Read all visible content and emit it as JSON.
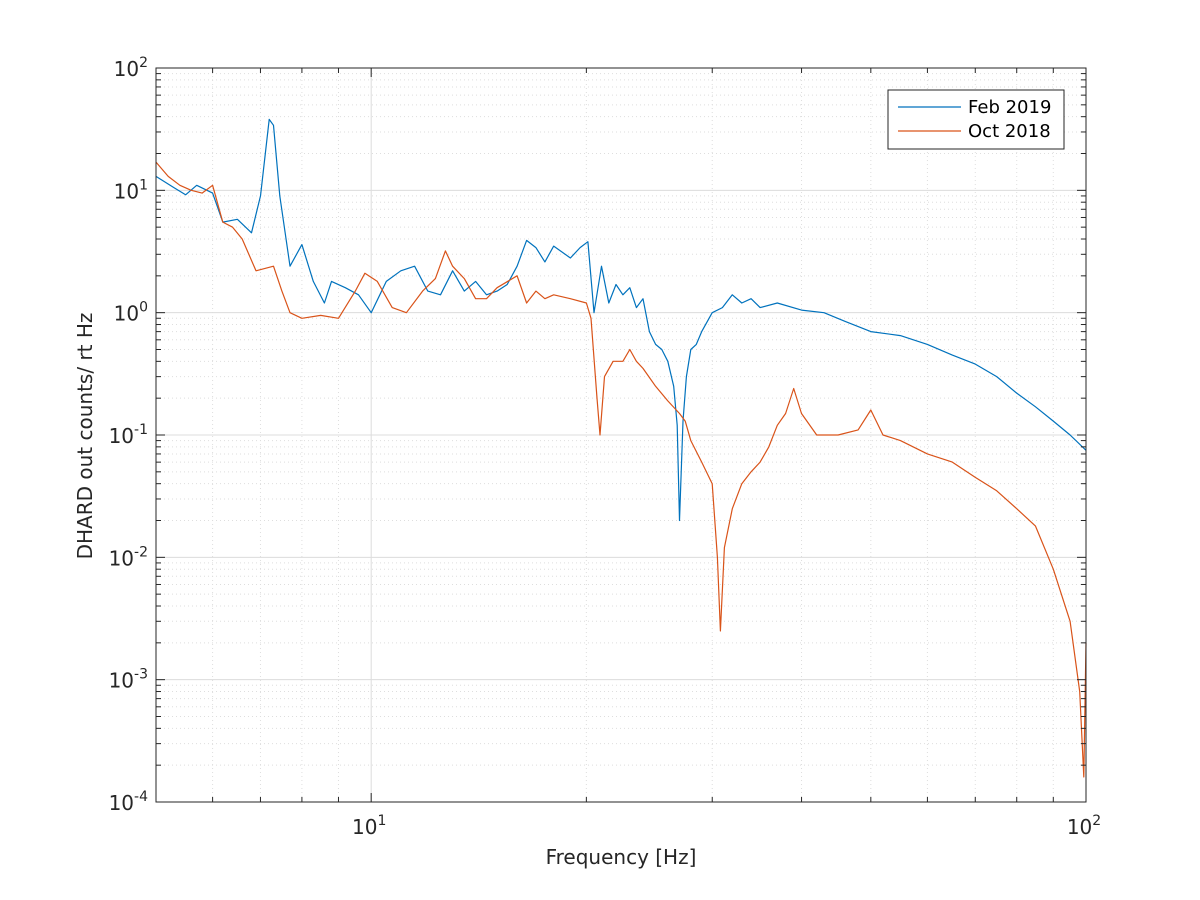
{
  "chart_data": {
    "type": "line",
    "title": "",
    "xlabel": "Frequency [Hz]",
    "ylabel": "DHARD out counts/ rt Hz",
    "xscale": "log",
    "yscale": "log",
    "xlim": [
      5,
      100
    ],
    "ylim": [
      0.0001,
      100
    ],
    "grid": true,
    "minor_grid": true,
    "legend_position": "top-right",
    "x_ticks": [
      {
        "value": 10,
        "base": "10",
        "exp": "1"
      },
      {
        "value": 100,
        "base": "10",
        "exp": "2"
      }
    ],
    "y_ticks": [
      {
        "value": 0.0001,
        "base": "10",
        "exp": "-4"
      },
      {
        "value": 0.001,
        "base": "10",
        "exp": "-3"
      },
      {
        "value": 0.01,
        "base": "10",
        "exp": "-2"
      },
      {
        "value": 0.1,
        "base": "10",
        "exp": "-1"
      },
      {
        "value": 1,
        "base": "10",
        "exp": "0"
      },
      {
        "value": 10,
        "base": "10",
        "exp": "1"
      },
      {
        "value": 100,
        "base": "10",
        "exp": "2"
      }
    ],
    "series": [
      {
        "name": "Feb 2019",
        "color": "#0072BD",
        "points": [
          [
            5.0,
            13
          ],
          [
            5.3,
            10.5
          ],
          [
            5.5,
            9.2
          ],
          [
            5.7,
            11
          ],
          [
            6.0,
            9.5
          ],
          [
            6.2,
            5.5
          ],
          [
            6.5,
            5.8
          ],
          [
            6.8,
            4.5
          ],
          [
            7.0,
            9
          ],
          [
            7.2,
            38
          ],
          [
            7.3,
            34
          ],
          [
            7.45,
            9
          ],
          [
            7.7,
            2.4
          ],
          [
            8.0,
            3.6
          ],
          [
            8.3,
            1.8
          ],
          [
            8.6,
            1.2
          ],
          [
            8.8,
            1.8
          ],
          [
            9.2,
            1.6
          ],
          [
            9.6,
            1.4
          ],
          [
            10.0,
            1.0
          ],
          [
            10.5,
            1.8
          ],
          [
            11.0,
            2.2
          ],
          [
            11.5,
            2.4
          ],
          [
            12.0,
            1.5
          ],
          [
            12.5,
            1.4
          ],
          [
            13.0,
            2.2
          ],
          [
            13.5,
            1.5
          ],
          [
            14.0,
            1.8
          ],
          [
            14.5,
            1.4
          ],
          [
            15.0,
            1.5
          ],
          [
            15.5,
            1.7
          ],
          [
            16.0,
            2.4
          ],
          [
            16.5,
            3.9
          ],
          [
            17.0,
            3.4
          ],
          [
            17.5,
            2.6
          ],
          [
            18.0,
            3.5
          ],
          [
            19.0,
            2.8
          ],
          [
            19.6,
            3.4
          ],
          [
            20.1,
            3.8
          ],
          [
            20.5,
            1.0
          ],
          [
            21.0,
            2.4
          ],
          [
            21.5,
            1.2
          ],
          [
            22.0,
            1.7
          ],
          [
            22.5,
            1.4
          ],
          [
            23.0,
            1.6
          ],
          [
            23.5,
            1.1
          ],
          [
            24.0,
            1.3
          ],
          [
            24.5,
            0.7
          ],
          [
            25.0,
            0.55
          ],
          [
            25.5,
            0.5
          ],
          [
            26.0,
            0.4
          ],
          [
            26.5,
            0.25
          ],
          [
            26.8,
            0.12
          ],
          [
            27.0,
            0.02
          ],
          [
            27.3,
            0.13
          ],
          [
            27.6,
            0.3
          ],
          [
            28.0,
            0.5
          ],
          [
            28.5,
            0.55
          ],
          [
            29.0,
            0.7
          ],
          [
            30.0,
            1.0
          ],
          [
            31.0,
            1.1
          ],
          [
            32.0,
            1.4
          ],
          [
            33.0,
            1.2
          ],
          [
            34.0,
            1.3
          ],
          [
            35.0,
            1.1
          ],
          [
            37.0,
            1.2
          ],
          [
            40.0,
            1.05
          ],
          [
            43.0,
            1.0
          ],
          [
            46.0,
            0.85
          ],
          [
            50.0,
            0.7
          ],
          [
            55.0,
            0.65
          ],
          [
            60.0,
            0.55
          ],
          [
            65.0,
            0.45
          ],
          [
            70.0,
            0.38
          ],
          [
            75.0,
            0.3
          ],
          [
            80.0,
            0.22
          ],
          [
            85.0,
            0.17
          ],
          [
            90.0,
            0.13
          ],
          [
            95.0,
            0.1
          ],
          [
            100.0,
            0.075
          ]
        ]
      },
      {
        "name": "Oct 2018",
        "color": "#D95319",
        "points": [
          [
            5.0,
            17
          ],
          [
            5.2,
            13
          ],
          [
            5.4,
            11
          ],
          [
            5.6,
            10
          ],
          [
            5.8,
            9.5
          ],
          [
            6.0,
            11
          ],
          [
            6.2,
            5.5
          ],
          [
            6.4,
            5
          ],
          [
            6.6,
            4
          ],
          [
            6.9,
            2.2
          ],
          [
            7.3,
            2.4
          ],
          [
            7.5,
            1.5
          ],
          [
            7.7,
            1.0
          ],
          [
            8.0,
            0.9
          ],
          [
            8.5,
            0.95
          ],
          [
            9.0,
            0.9
          ],
          [
            9.5,
            1.5
          ],
          [
            9.8,
            2.1
          ],
          [
            10.2,
            1.8
          ],
          [
            10.7,
            1.1
          ],
          [
            11.2,
            1.0
          ],
          [
            11.8,
            1.5
          ],
          [
            12.3,
            1.9
          ],
          [
            12.7,
            3.2
          ],
          [
            13.0,
            2.4
          ],
          [
            13.5,
            1.9
          ],
          [
            14.0,
            1.3
          ],
          [
            14.5,
            1.3
          ],
          [
            15.0,
            1.6
          ],
          [
            16.0,
            2.0
          ],
          [
            16.5,
            1.2
          ],
          [
            17.0,
            1.5
          ],
          [
            17.5,
            1.3
          ],
          [
            18.0,
            1.4
          ],
          [
            19.0,
            1.3
          ],
          [
            20.0,
            1.2
          ],
          [
            20.3,
            0.9
          ],
          [
            20.7,
            0.2
          ],
          [
            20.9,
            0.1
          ],
          [
            21.2,
            0.3
          ],
          [
            21.8,
            0.4
          ],
          [
            22.5,
            0.4
          ],
          [
            23.0,
            0.5
          ],
          [
            23.5,
            0.4
          ],
          [
            24.0,
            0.35
          ],
          [
            25.0,
            0.25
          ],
          [
            26.0,
            0.19
          ],
          [
            27.0,
            0.15
          ],
          [
            27.5,
            0.13
          ],
          [
            28.0,
            0.09
          ],
          [
            29.0,
            0.06
          ],
          [
            30.0,
            0.04
          ],
          [
            30.5,
            0.01
          ],
          [
            30.8,
            0.0025
          ],
          [
            31.2,
            0.012
          ],
          [
            32.0,
            0.025
          ],
          [
            33.0,
            0.04
          ],
          [
            34.0,
            0.05
          ],
          [
            35.0,
            0.06
          ],
          [
            36.0,
            0.08
          ],
          [
            37.0,
            0.12
          ],
          [
            38.0,
            0.15
          ],
          [
            39.0,
            0.24
          ],
          [
            40.0,
            0.15
          ],
          [
            42.0,
            0.1
          ],
          [
            45.0,
            0.1
          ],
          [
            48.0,
            0.11
          ],
          [
            50.0,
            0.16
          ],
          [
            52.0,
            0.1
          ],
          [
            55.0,
            0.09
          ],
          [
            60.0,
            0.07
          ],
          [
            65.0,
            0.06
          ],
          [
            70.0,
            0.045
          ],
          [
            75.0,
            0.035
          ],
          [
            80.0,
            0.025
          ],
          [
            85.0,
            0.018
          ],
          [
            90.0,
            0.008
          ],
          [
            95.0,
            0.003
          ],
          [
            98.0,
            0.0008
          ],
          [
            99.3,
            0.00016
          ],
          [
            100.0,
            0.002
          ]
        ]
      }
    ]
  }
}
